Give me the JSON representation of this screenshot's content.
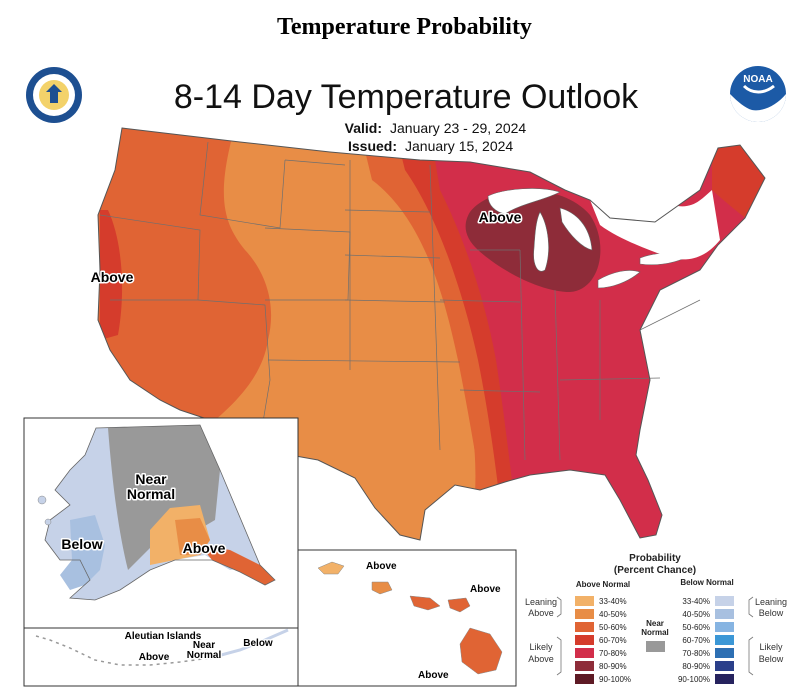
{
  "page_title": "Temperature Probability",
  "map": {
    "title": "8-14 Day Temperature Outlook",
    "valid_label": "Valid:",
    "valid_value": "January 23 - 29, 2024",
    "issued_label": "Issued:",
    "issued_value": "January 15, 2024",
    "logos": {
      "left": "commerce-seal-icon",
      "right": "noaa-logo-icon"
    },
    "labels": {
      "west_coast": "Above",
      "great_lakes": "Above",
      "alaska_near_normal_1": "Near",
      "alaska_near_normal_2": "Normal",
      "alaska_below": "Below",
      "alaska_above": "Above",
      "hawaii_1": "Above",
      "hawaii_2": "Above",
      "hawaii_3": "Above",
      "aleutian_title": "Aleutian Islands",
      "aleutian_above": "Above",
      "aleutian_near_1": "Near",
      "aleutian_near_2": "Normal",
      "aleutian_below": "Below"
    }
  },
  "colors": {
    "above_33_40": "#f2b168",
    "above_40_50": "#e88d46",
    "above_50_60": "#e06434",
    "above_60_70": "#d53c2c",
    "above_70_80": "#d22e4a",
    "above_80_90": "#8e2c39",
    "above_90_100": "#5e1a25",
    "below_33_40": "#c6d2e8",
    "below_40_50": "#a8c0e0",
    "below_50_60": "#86b4e2",
    "below_60_70": "#3b97d6",
    "below_70_80": "#2d6fb3",
    "below_80_90": "#2b3f8a",
    "below_90_100": "#26235e",
    "near_normal": "#999999"
  },
  "legend": {
    "title_1": "Probability",
    "title_2": "(Percent Chance)",
    "above_header": "Above Normal",
    "below_header": "Below Normal",
    "leaning_above_1": "Leaning",
    "leaning_above_2": "Above",
    "likely_above_1": "Likely",
    "likely_above_2": "Above",
    "near_1": "Near",
    "near_2": "Normal",
    "leaning_below_1": "Leaning",
    "leaning_below_2": "Below",
    "likely_below_1": "Likely",
    "likely_below_2": "Below",
    "above_ranges": [
      "33-40%",
      "40-50%",
      "50-60%",
      "60-70%",
      "70-80%",
      "80-90%",
      "90-100%"
    ],
    "below_ranges": [
      "33-40%",
      "40-50%",
      "50-60%",
      "60-70%",
      "70-80%",
      "80-90%",
      "90-100%"
    ]
  }
}
